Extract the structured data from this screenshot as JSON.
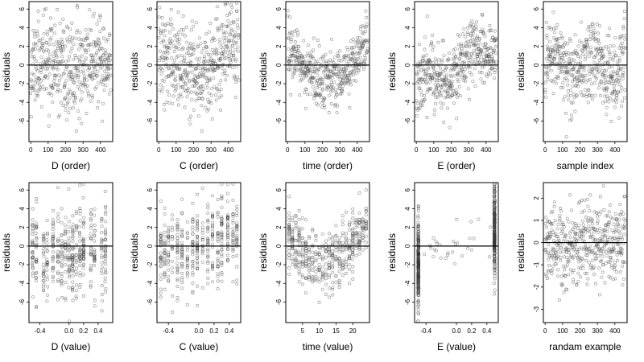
{
  "chart_data": [
    {
      "type": "scatter",
      "xlabel": "D (order)",
      "ylabel": "residuals",
      "xlim": [
        -10,
        470
      ],
      "ylim": [
        -8.2,
        6.8
      ],
      "xticks": [
        0,
        100,
        200,
        300,
        400
      ],
      "yticks": [
        -6,
        -4,
        -2,
        0,
        2,
        4,
        6
      ],
      "hline": 0,
      "pattern": "order_d",
      "seed": 11
    },
    {
      "type": "scatter",
      "xlabel": "C (order)",
      "ylabel": "residuals",
      "xlim": [
        -10,
        470
      ],
      "ylim": [
        -8.2,
        6.8
      ],
      "xticks": [
        0,
        100,
        200,
        300,
        400
      ],
      "yticks": [
        -6,
        -4,
        -2,
        0,
        2,
        4,
        6
      ],
      "hline": 0,
      "pattern": "order_c",
      "seed": 12
    },
    {
      "type": "scatter",
      "xlabel": "time (order)",
      "ylabel": "residuals",
      "xlim": [
        -10,
        470
      ],
      "ylim": [
        -8.2,
        6.8
      ],
      "xticks": [
        0,
        100,
        200,
        300,
        400
      ],
      "yticks": [
        -6,
        -4,
        -2,
        0,
        2,
        4,
        6
      ],
      "hline": 0,
      "pattern": "order_time",
      "seed": 13
    },
    {
      "type": "scatter",
      "xlabel": "E (order)",
      "ylabel": "residuals",
      "xlim": [
        -10,
        470
      ],
      "ylim": [
        -8.2,
        6.8
      ],
      "xticks": [
        0,
        100,
        200,
        300,
        400
      ],
      "yticks": [
        -6,
        -4,
        -2,
        0,
        2,
        4,
        6
      ],
      "hline": 0,
      "pattern": "order_e",
      "seed": 14
    },
    {
      "type": "scatter",
      "xlabel": "sample index",
      "ylabel": "residuals",
      "xlim": [
        -10,
        470
      ],
      "ylim": [
        -8.2,
        6.8
      ],
      "xticks": [
        0,
        100,
        200,
        300,
        400
      ],
      "yticks": [
        -6,
        -4,
        -2,
        0,
        2,
        4,
        6
      ],
      "hline": 0,
      "pattern": "order_s",
      "seed": 15
    },
    {
      "type": "scatter",
      "xlabel": "D (value)",
      "ylabel": "residuals",
      "xlim": [
        -0.55,
        0.6
      ],
      "ylim": [
        -8.2,
        6.8
      ],
      "xticks": [
        -0.4,
        0.0,
        0.2,
        0.4
      ],
      "xticklabels": [
        "-0.4",
        "0.0",
        "0.2",
        "0.4"
      ],
      "yticks": [
        -6,
        -4,
        -2,
        0,
        2,
        4,
        6
      ],
      "hline": 0,
      "pattern": "value_d",
      "seed": 21
    },
    {
      "type": "scatter",
      "xlabel": "C (value)",
      "ylabel": "residuals",
      "xlim": [
        -0.55,
        0.55
      ],
      "ylim": [
        -8.2,
        6.8
      ],
      "xticks": [
        -0.4,
        0.0,
        0.2,
        0.4
      ],
      "xticklabels": [
        "-0.4",
        "0.0",
        "0.2",
        "0.4"
      ],
      "yticks": [
        -6,
        -4,
        -2,
        0,
        2,
        4,
        6
      ],
      "hline": 0,
      "pattern": "value_c",
      "seed": 22
    },
    {
      "type": "scatter",
      "xlabel": "time (value)",
      "ylabel": "residuals",
      "xlim": [
        0,
        25
      ],
      "ylim": [
        -8.2,
        6.8
      ],
      "xticks": [
        5,
        10,
        15,
        20
      ],
      "xticklabels": [
        "5",
        "10",
        "15",
        "20"
      ],
      "yticks": [
        -6,
        -4,
        -2,
        0,
        2,
        4,
        6
      ],
      "hline": 0,
      "pattern": "value_time",
      "seed": 23
    },
    {
      "type": "scatter",
      "xlabel": "E (value)",
      "ylabel": "residuals",
      "xlim": [
        -0.55,
        0.55
      ],
      "ylim": [
        -8.2,
        6.8
      ],
      "xticks": [
        -0.4,
        0.0,
        0.2,
        0.4
      ],
      "xticklabels": [
        "-0.4",
        "0.0",
        "0.2",
        "0.4"
      ],
      "yticks": [
        -6,
        -4,
        -2,
        0,
        2,
        4,
        6
      ],
      "hline": 0,
      "pattern": "value_e",
      "seed": 24
    },
    {
      "type": "scatter",
      "xlabel": "randam example",
      "ylabel": "residuals",
      "xlim": [
        -10,
        470
      ],
      "ylim": [
        -3.6,
        2.7
      ],
      "xticks": [
        0,
        100,
        200,
        300,
        400
      ],
      "yticks": [
        -3,
        -2,
        -1,
        0,
        1,
        2
      ],
      "hline": 0,
      "pattern": "random",
      "seed": 25
    }
  ]
}
